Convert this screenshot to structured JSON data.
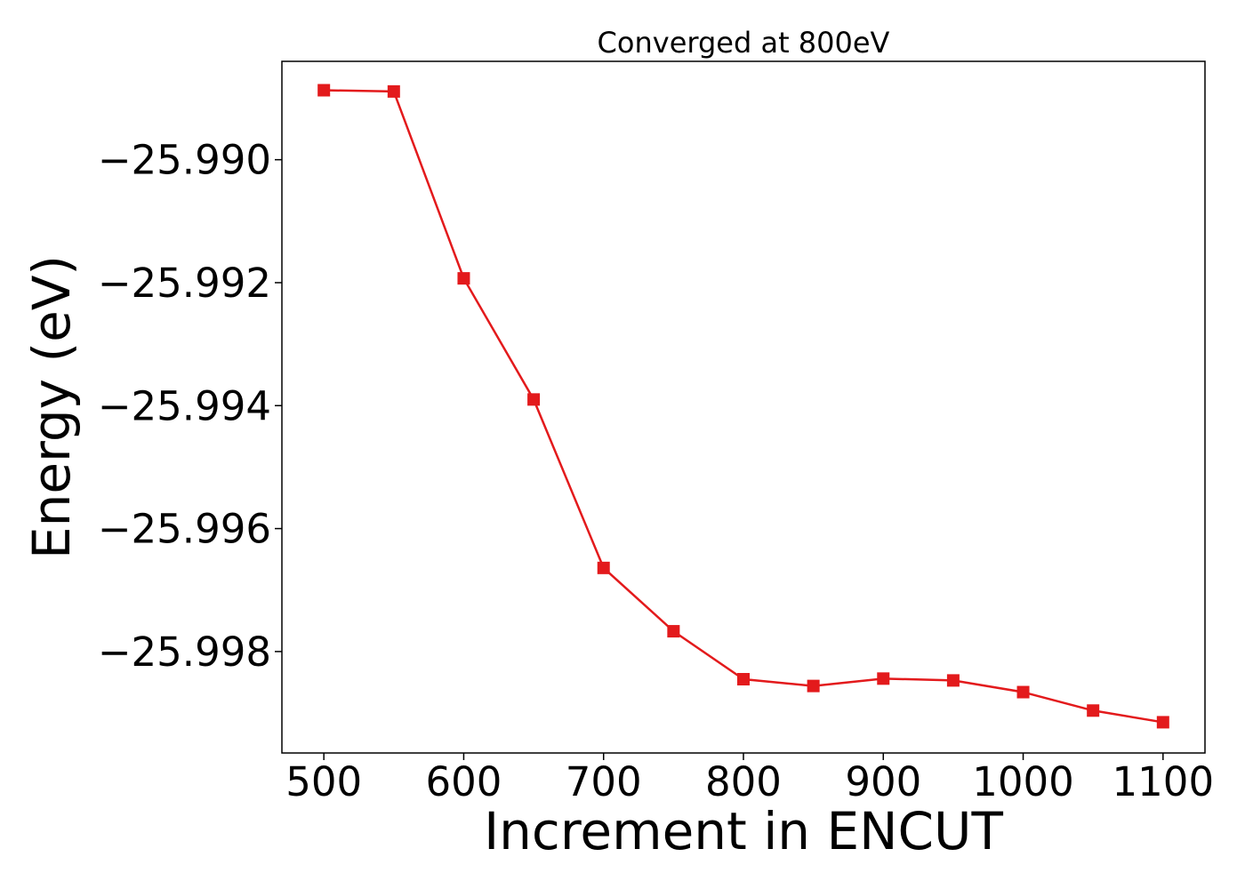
{
  "chart_data": {
    "type": "line",
    "title": "Converged at 800eV",
    "xlabel": "Increment in ENCUT",
    "ylabel": "Energy (eV)",
    "x": [
      500,
      550,
      600,
      650,
      700,
      750,
      800,
      850,
      900,
      950,
      1000,
      1050,
      1100
    ],
    "series": [
      {
        "values": [
          -25.98887,
          -25.98889,
          -25.99193,
          -25.9939,
          -25.99664,
          -25.99767,
          -25.99845,
          -25.99856,
          -25.99844,
          -25.99847,
          -25.99866,
          -25.99896,
          -25.99915
        ],
        "color": "#e31a1c",
        "marker": "square"
      }
    ],
    "xticks": [
      500,
      600,
      700,
      800,
      900,
      1000,
      1100
    ],
    "xtick_labels": [
      "500",
      "600",
      "700",
      "800",
      "900",
      "1000",
      "1100"
    ],
    "yticks": [
      -25.99,
      -25.992,
      -25.994,
      -25.996,
      -25.998
    ],
    "ytick_labels": [
      "−25.990",
      "−25.992",
      "−25.994",
      "−25.996",
      "−25.998"
    ],
    "xlim": [
      470,
      1130
    ],
    "ylim": [
      -25.99965,
      -25.9884
    ],
    "grid": false,
    "legend": "none"
  }
}
